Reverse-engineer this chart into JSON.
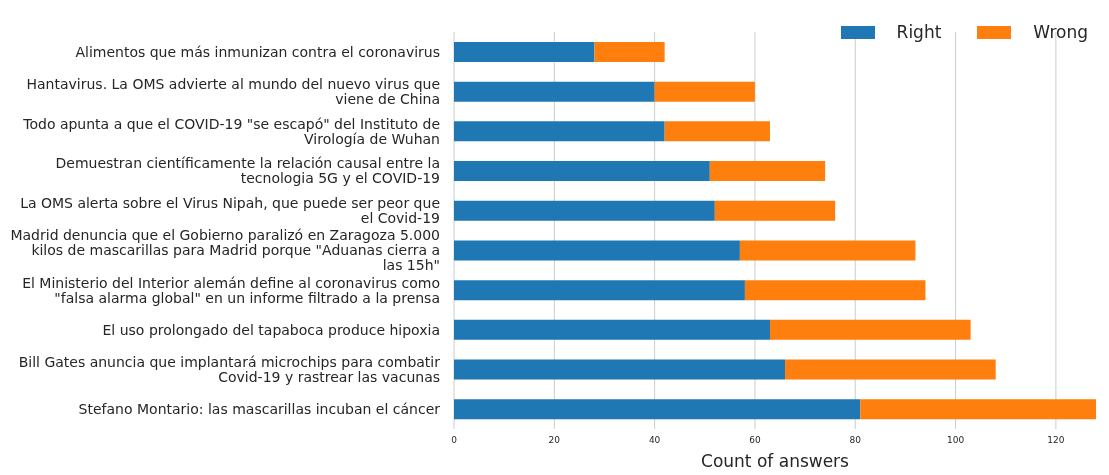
{
  "chart_data": {
    "type": "bar",
    "orientation": "horizontal",
    "stacked": true,
    "xlabel": "Count of answers",
    "categories": [
      "Alimentos que más inmunizan contra el coronavirus",
      "Hantavirus. La OMS advierte al mundo del nuevo virus que viene de China",
      "Todo apunta a que el COVID-19 \"se escapó\" del Instituto de Virología de Wuhan",
      "Demuestran científicamente la relación causal entre la tecnologia 5G y el COVID-19",
      "La OMS alerta sobre el Virus Nipah, que puede ser peor que el Covid-19",
      "Madrid denuncia que el Gobierno paralizó en Zaragoza 5.000 kilos de mascarillas para Madrid porque \"Aduanas cierra a las 15h\"",
      "El Ministerio del Interior alemán define al coronavirus como \"falsa alarma global\" en un informe filtrado a la prensa",
      "El uso prolongado del tapaboca produce hipoxia",
      "Bill Gates anuncia que implantará microchips para combatir Covid-19 y rastrear las vacunas",
      "Stefano Montario: las mascarillas incuban el cáncer"
    ],
    "series": [
      {
        "name": "Right",
        "color": "#1f77b4",
        "values": [
          28,
          40,
          42,
          51,
          52,
          57,
          58,
          63,
          66,
          81
        ]
      },
      {
        "name": "Wrong",
        "color": "#ff7f0e",
        "values": [
          14,
          20,
          21,
          23,
          24,
          35,
          36,
          40,
          42,
          47
        ]
      }
    ],
    "xlim": [
      0,
      128
    ],
    "xticks": [
      0,
      20,
      40,
      60,
      80,
      100,
      120
    ],
    "grid": "x",
    "legend": "top right"
  }
}
